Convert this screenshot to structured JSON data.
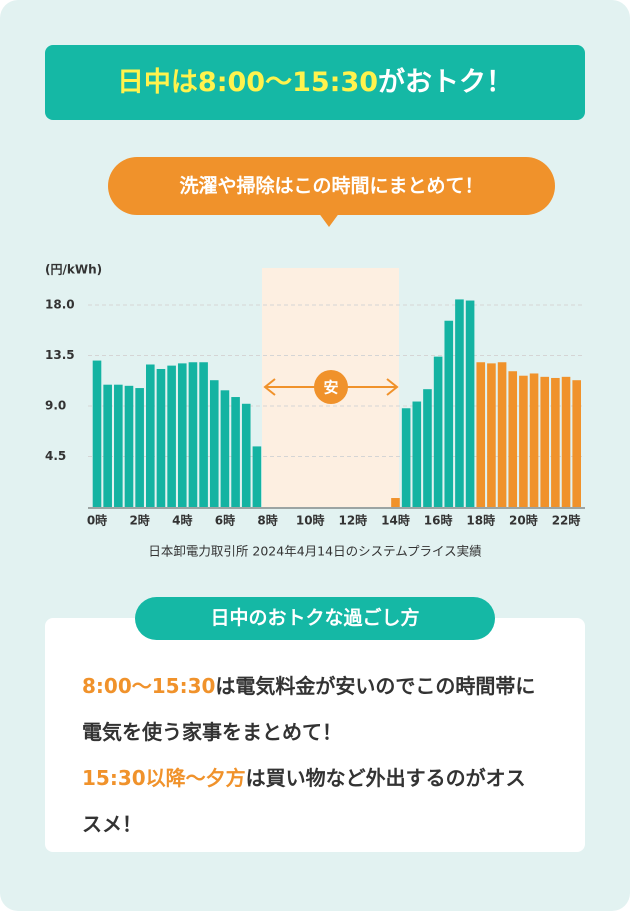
{
  "header": {
    "title_highlight": "日中は8:00〜15:30",
    "title_rest": "がおトク！",
    "bubble": "洗濯や掃除はこの時間にまとめて！"
  },
  "chart_data": {
    "type": "bar",
    "y_label": "(円/kWh)",
    "annotation": "安",
    "source": "日本卸電力取引所 2024年4月14日のシステムプライス実績",
    "categories": [
      "0時",
      null,
      null,
      null,
      "2時",
      null,
      null,
      null,
      "4時",
      null,
      null,
      null,
      "6時",
      null,
      null,
      null,
      "8時",
      null,
      null,
      null,
      "10時",
      null,
      null,
      null,
      "12時",
      null,
      null,
      null,
      "14時",
      null,
      null,
      null,
      "16時",
      null,
      null,
      null,
      "18時",
      null,
      null,
      null,
      "20時",
      null,
      null,
      null,
      "22時",
      null
    ],
    "values": [
      13.05,
      10.9,
      10.9,
      10.8,
      10.6,
      12.7,
      12.3,
      12.6,
      12.8,
      12.9,
      12.9,
      11.3,
      10.4,
      9.8,
      9.2,
      5.4,
      0,
      0,
      0,
      0,
      0,
      0,
      0,
      0,
      0,
      0,
      0,
      0,
      0.8,
      8.8,
      9.4,
      10.5,
      13.4,
      16.6,
      18.5,
      18.4,
      12.9,
      12.8,
      12.9,
      12.1,
      11.7,
      11.9,
      11.6,
      11.5,
      11.6,
      11.3
    ],
    "colors": [
      "#14b3a2",
      "#14b3a2",
      "#14b3a2",
      "#14b3a2",
      "#14b3a2",
      "#14b3a2",
      "#14b3a2",
      "#14b3a2",
      "#14b3a2",
      "#14b3a2",
      "#14b3a2",
      "#14b3a2",
      "#14b3a2",
      "#14b3a2",
      "#14b3a2",
      "#14b3a2",
      "#14b3a2",
      "#14b3a2",
      "#14b3a2",
      "#14b3a2",
      "#14b3a2",
      "#14b3a2",
      "#14b3a2",
      "#14b3a2",
      "#14b3a2",
      "#14b3a2",
      "#14b3a2",
      "#14b3a2",
      "#f0922b",
      "#14b3a2",
      "#14b3a2",
      "#14b3a2",
      "#14b3a2",
      "#14b3a2",
      "#14b3a2",
      "#14b3a2",
      "#f0922b",
      "#f0922b",
      "#f0922b",
      "#f0922b",
      "#f0922b",
      "#f0922b",
      "#f0922b",
      "#f0922b",
      "#f0922b",
      "#f0922b"
    ],
    "ylim": [
      0,
      21.3
    ],
    "yticks": [
      4.5,
      {
        "value": 9,
        "label": "9.0"
      },
      13.5,
      {
        "value": 18,
        "label": "18.0"
      }
    ],
    "grid": true
  },
  "card": {
    "title": "日中のおトクな過ごし方",
    "lines": [
      [
        "8:00〜15:30",
        "は電気料金が安いのでこの時間帯に電気を使う家事をまとめて！"
      ],
      [
        "15:30以降〜夕方",
        "は買い物など外出するのがオススメ！"
      ]
    ]
  }
}
